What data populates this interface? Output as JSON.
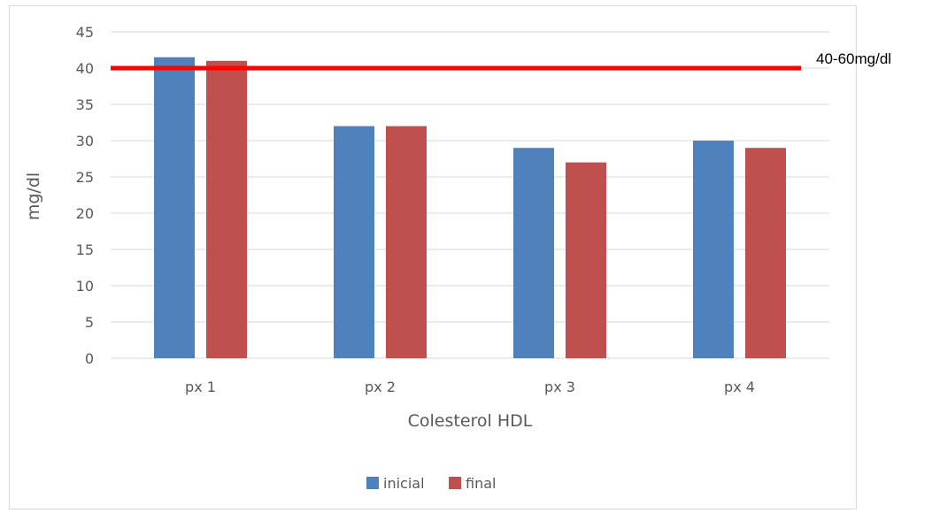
{
  "chart_data": {
    "type": "bar",
    "categories": [
      "px 1",
      "px 2",
      "px 3",
      "px 4"
    ],
    "series": [
      {
        "name": "inicial",
        "color": "#4F81BD",
        "values": [
          41.5,
          32,
          29,
          30
        ]
      },
      {
        "name": "final",
        "color": "#C0504D",
        "values": [
          41,
          32,
          27,
          29
        ]
      }
    ],
    "xlabel": "Colesterol HDL",
    "ylabel": "mg/dl",
    "ylim": [
      0,
      45
    ],
    "yticks": [
      0,
      5,
      10,
      15,
      20,
      25,
      30,
      35,
      40,
      45
    ],
    "grid": true,
    "legend_position": "bottom",
    "reference_line": {
      "value": 40,
      "label": "40-60mg/dl",
      "color": "#FF0000"
    }
  }
}
